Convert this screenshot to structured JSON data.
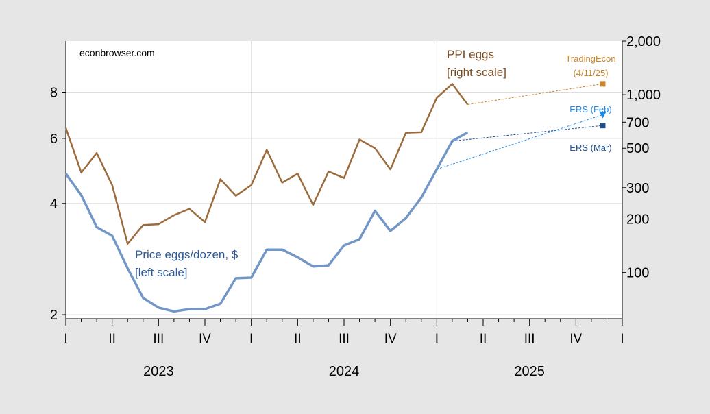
{
  "chart_data": {
    "type": "line",
    "watermark": "econbrowser.com",
    "x_axis": {
      "quarter_labels": [
        "I",
        "II",
        "III",
        "IV",
        "I",
        "II",
        "III",
        "IV",
        "I",
        "II",
        "III",
        "IV",
        "I"
      ],
      "year_labels": [
        "2023",
        "2024",
        "2025"
      ]
    },
    "left_axis": {
      "scale": "log",
      "range": [
        1.95,
        11.0
      ],
      "ticks": [
        2,
        4,
        6,
        8
      ],
      "tick_labels": [
        "2",
        "4",
        "6",
        "8"
      ]
    },
    "right_axis": {
      "scale": "log",
      "range": [
        55,
        2000
      ],
      "ticks": [
        100,
        200,
        300,
        500,
        700,
        1000,
        2000
      ],
      "tick_labels": [
        "100",
        "200",
        "300",
        "500",
        "700",
        "1,000",
        "2,000"
      ]
    },
    "grid": true,
    "series": [
      {
        "name": "Price eggs/dozen, $",
        "label_lines": [
          "Price eggs/dozen, $",
          "[left scale]"
        ],
        "axis": "left",
        "color": "#7296c6",
        "x": [
          "2023-01",
          "2023-02",
          "2023-03",
          "2023-04",
          "2023-05",
          "2023-06",
          "2023-07",
          "2023-08",
          "2023-09",
          "2023-10",
          "2023-11",
          "2023-12",
          "2024-01",
          "2024-02",
          "2024-03",
          "2024-04",
          "2024-05",
          "2024-06",
          "2024-07",
          "2024-08",
          "2024-09",
          "2024-10",
          "2024-11",
          "2024-12",
          "2025-01",
          "2025-02",
          "2025-03"
        ],
        "values": [
          4.82,
          4.21,
          3.45,
          3.27,
          2.67,
          2.22,
          2.09,
          2.04,
          2.07,
          2.07,
          2.14,
          2.51,
          2.52,
          3.0,
          3.0,
          2.86,
          2.7,
          2.72,
          3.08,
          3.2,
          3.82,
          3.37,
          3.65,
          4.15,
          4.95,
          5.9,
          6.23
        ]
      },
      {
        "name": "PPI eggs",
        "label_lines": [
          "PPI eggs",
          "[right scale]"
        ],
        "axis": "right",
        "color": "#9c6b3c",
        "x": [
          "2023-01",
          "2023-02",
          "2023-03",
          "2023-04",
          "2023-05",
          "2023-06",
          "2023-07",
          "2023-08",
          "2023-09",
          "2023-10",
          "2023-11",
          "2023-12",
          "2024-01",
          "2024-02",
          "2024-03",
          "2024-04",
          "2024-05",
          "2024-06",
          "2024-07",
          "2024-08",
          "2024-09",
          "2024-10",
          "2024-11",
          "2024-12",
          "2025-01",
          "2025-02",
          "2025-03"
        ],
        "values": [
          650,
          365,
          470,
          310,
          145,
          185,
          187,
          210,
          228,
          192,
          335,
          270,
          310,
          490,
          320,
          360,
          240,
          370,
          340,
          560,
          500,
          380,
          610,
          615,
          960,
          1150,
          880
        ]
      }
    ],
    "forecasts": [
      {
        "name": "TradingEcon",
        "label_lines": [
          "TradingEcon",
          "(4/11/25)"
        ],
        "axis": "right",
        "color": "#c8862c",
        "marker": "square",
        "x": [
          "2025-03",
          "2025-12"
        ],
        "values": [
          880,
          1150
        ]
      },
      {
        "name": "ERS (Feb)",
        "label_lines": [
          "ERS (Feb)"
        ],
        "axis": "left",
        "color": "#1e8ae6",
        "marker": "triangle-down",
        "x": [
          "2025-01",
          "2025-12"
        ],
        "values": [
          4.95,
          6.95
        ]
      },
      {
        "name": "ERS (Mar)",
        "label_lines": [
          "ERS (Mar)"
        ],
        "axis": "left",
        "color": "#1e4f8c",
        "marker": "square",
        "x": [
          "2025-02",
          "2025-12"
        ],
        "values": [
          5.9,
          6.5
        ]
      }
    ]
  }
}
